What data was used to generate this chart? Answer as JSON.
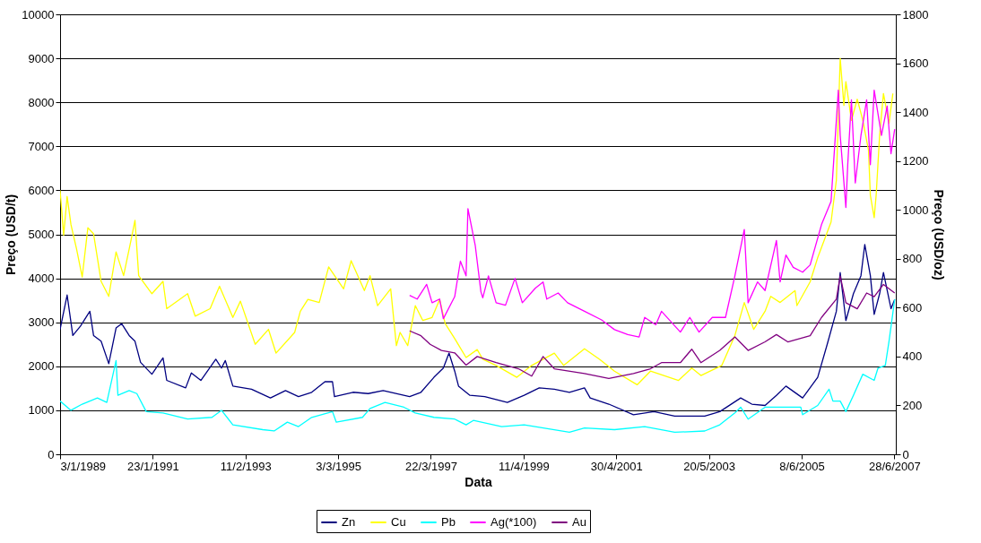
{
  "chart_data": {
    "type": "line",
    "xlabel": "Data",
    "ylabel": "Preço (USD/t)",
    "y2label": "Preço (USD/oz)",
    "xlim": [
      "1989-01-03",
      "2007-07-10"
    ],
    "xticks": [
      {
        "value": "1989-01-03",
        "label": "3/1/1989"
      },
      {
        "value": "1991-01-23",
        "label": "23/1/1991"
      },
      {
        "value": "1993-02-11",
        "label": "11/2/1993"
      },
      {
        "value": "1995-03-03",
        "label": "3/3/1995"
      },
      {
        "value": "1997-03-22",
        "label": "22/3/1997"
      },
      {
        "value": "1999-04-11",
        "label": "11/4/1999"
      },
      {
        "value": "2001-04-30",
        "label": "30/4/2001"
      },
      {
        "value": "2003-05-20",
        "label": "20/5/2003"
      },
      {
        "value": "2005-06-08",
        "label": "8/6/2005"
      },
      {
        "value": "2007-06-28",
        "label": "28/6/2007"
      }
    ],
    "ylim": [
      0,
      10000
    ],
    "yticks": [
      0,
      1000,
      2000,
      3000,
      4000,
      5000,
      6000,
      7000,
      8000,
      9000,
      10000
    ],
    "y2lim": [
      0,
      1800
    ],
    "y2ticks": [
      0,
      200,
      400,
      600,
      800,
      1000,
      1200,
      1400,
      1600,
      1800
    ],
    "grid": "y",
    "legend": "bottom",
    "series": [
      {
        "name": "Zn",
        "color": "#000080",
        "x": [
          "1989-01-03",
          "1989-03-01",
          "1989-04-16",
          "1989-06-16",
          "1989-09-01",
          "1989-10-01",
          "1989-12-01",
          "1990-02-01",
          "1990-04-01",
          "1990-05-16",
          "1990-07-16",
          "1990-09-01",
          "1990-10-16",
          "1991-01-16",
          "1991-04-16",
          "1991-05-16",
          "1991-10-16",
          "1991-12-01",
          "1992-02-16",
          "1992-06-16",
          "1992-08-01",
          "1992-09-01",
          "1992-11-01",
          "1993-04-01",
          "1993-09-01",
          "1994-01-01",
          "1994-04-16",
          "1994-08-01",
          "1994-11-16",
          "1995-01-16",
          "1995-02-01",
          "1995-07-01",
          "1995-11-01",
          "1996-03-01",
          "1996-10-01",
          "1997-01-01",
          "1997-04-16",
          "1997-07-01",
          "1997-08-16",
          "1997-10-01",
          "1997-11-01",
          "1998-02-01",
          "1998-06-01",
          "1998-12-01",
          "1999-04-16",
          "1999-08-16",
          "1999-12-16",
          "2000-04-16",
          "2000-08-16",
          "2000-10-01",
          "2001-03-01",
          "2001-09-16",
          "2002-03-01",
          "2002-08-16",
          "2003-04-16",
          "2003-08-16",
          "2004-02-01",
          "2004-05-01",
          "2004-08-16",
          "2004-11-16",
          "2005-02-01",
          "2005-06-16",
          "2005-10-16",
          "2006-01-01",
          "2006-03-16",
          "2006-04-16",
          "2006-06-01",
          "2006-08-01",
          "2006-10-01",
          "2006-11-01",
          "2006-12-16",
          "2007-01-16",
          "2007-03-01",
          "2007-04-01",
          "2007-06-01",
          "2007-07-01"
        ],
        "values": [
          2840,
          3620,
          2700,
          2910,
          3250,
          2700,
          2570,
          2060,
          2870,
          2970,
          2700,
          2570,
          2090,
          1820,
          2190,
          1680,
          1510,
          1850,
          1680,
          2160,
          1960,
          2130,
          1550,
          1480,
          1280,
          1450,
          1310,
          1410,
          1650,
          1650,
          1310,
          1410,
          1380,
          1450,
          1310,
          1410,
          1750,
          1960,
          2300,
          1890,
          1550,
          1340,
          1310,
          1180,
          1340,
          1510,
          1480,
          1410,
          1510,
          1280,
          1140,
          900,
          970,
          870,
          870,
          970,
          1280,
          1140,
          1110,
          1340,
          1550,
          1280,
          1750,
          2500,
          3250,
          4130,
          3040,
          3650,
          4060,
          4770,
          4060,
          3180,
          3650,
          4130,
          3310,
          3520
        ]
      },
      {
        "name": "Cu",
        "color": "#ffff00",
        "x": [
          "1989-01-03",
          "1989-02-01",
          "1989-03-01",
          "1989-04-01",
          "1989-05-16",
          "1989-07-01",
          "1989-08-16",
          "1989-10-01",
          "1989-12-01",
          "1990-02-01",
          "1990-04-01",
          "1990-06-01",
          "1990-08-01",
          "1990-09-01",
          "1990-10-01",
          "1991-01-16",
          "1991-04-16",
          "1991-05-16",
          "1991-11-01",
          "1992-01-01",
          "1992-05-01",
          "1992-07-16",
          "1992-11-01",
          "1993-01-01",
          "1993-05-01",
          "1993-08-16",
          "1993-10-16",
          "1994-03-16",
          "1994-05-01",
          "1994-07-01",
          "1994-10-01",
          "1994-12-16",
          "1995-04-16",
          "1995-06-16",
          "1995-10-01",
          "1995-11-16",
          "1996-01-16",
          "1996-05-01",
          "1996-06-16",
          "1996-07-16",
          "1996-09-16",
          "1996-11-16",
          "1997-01-16",
          "1997-04-01",
          "1997-06-01",
          "1997-07-16",
          "1997-10-01",
          "1998-01-01",
          "1998-04-01",
          "1998-05-16",
          "1998-09-01",
          "1999-02-16",
          "1999-06-16",
          "1999-12-16",
          "2000-03-01",
          "2000-08-16",
          "2000-12-16",
          "2001-04-16",
          "2001-10-16",
          "2002-02-01",
          "2002-09-16",
          "2003-01-01",
          "2003-03-16",
          "2003-09-01",
          "2003-12-16",
          "2004-03-01",
          "2004-05-16",
          "2004-08-16",
          "2004-10-01",
          "2004-12-16",
          "2005-04-16",
          "2005-05-01",
          "2005-08-16",
          "2005-10-16",
          "2006-02-01",
          "2006-03-16",
          "2006-04-16",
          "2006-05-16",
          "2006-06-01",
          "2006-07-16",
          "2006-09-01",
          "2006-10-16",
          "2006-12-01",
          "2006-12-16",
          "2007-01-16",
          "2007-02-01",
          "2007-03-01",
          "2007-04-01",
          "2007-05-16",
          "2007-06-16"
        ],
        "values": [
          6000,
          4980,
          5860,
          5220,
          4670,
          4030,
          5150,
          5010,
          3930,
          3590,
          4600,
          4060,
          4880,
          5320,
          4060,
          3650,
          3930,
          3310,
          3650,
          3140,
          3310,
          3820,
          3110,
          3480,
          2500,
          2840,
          2300,
          2770,
          3250,
          3520,
          3450,
          4260,
          3760,
          4400,
          3720,
          4060,
          3380,
          3760,
          2470,
          2770,
          2470,
          3380,
          3040,
          3110,
          3520,
          2970,
          2630,
          2200,
          2380,
          2160,
          2020,
          1750,
          2020,
          2300,
          2020,
          2400,
          2160,
          1890,
          1580,
          1890,
          1680,
          1960,
          1790,
          2020,
          2700,
          3450,
          2840,
          3250,
          3590,
          3450,
          3720,
          3380,
          3920,
          4470,
          5280,
          6230,
          9000,
          7930,
          8470,
          7590,
          8070,
          7590,
          6910,
          5890,
          5380,
          5890,
          7250,
          8200,
          7520,
          8200
        ]
      },
      {
        "name": "Pb",
        "color": "#00ffff",
        "x": [
          "1989-01-03",
          "1989-04-01",
          "1989-07-01",
          "1989-11-01",
          "1990-01-16",
          "1990-04-01",
          "1990-04-16",
          "1990-07-16",
          "1990-09-16",
          "1990-12-01",
          "1991-04-16",
          "1991-11-01",
          "1992-05-16",
          "1992-08-01",
          "1992-11-01",
          "1993-07-01",
          "1993-10-01",
          "1994-01-16",
          "1994-04-16",
          "1994-08-01",
          "1995-01-16",
          "1995-02-16",
          "1995-09-16",
          "1995-11-16",
          "1996-03-16",
          "1996-08-16",
          "1996-11-16",
          "1997-04-16",
          "1997-10-01",
          "1998-01-01",
          "1998-03-01",
          "1998-10-16",
          "1999-04-16",
          "2000-04-16",
          "2000-08-16",
          "2001-04-16",
          "2001-12-16",
          "2002-08-16",
          "2003-04-16",
          "2003-08-16",
          "2003-12-16",
          "2004-02-01",
          "2004-04-01",
          "2004-08-16",
          "2005-06-01",
          "2005-06-16",
          "2005-10-16",
          "2006-01-16",
          "2006-02-16",
          "2006-04-16",
          "2006-06-01",
          "2006-08-01",
          "2006-10-16",
          "2007-01-16",
          "2007-02-16",
          "2007-04-16",
          "2007-05-16",
          "2007-07-01"
        ],
        "values": [
          1210,
          1000,
          1140,
          1280,
          1180,
          2130,
          1340,
          1450,
          1380,
          970,
          940,
          800,
          840,
          1000,
          670,
          560,
          530,
          730,
          630,
          840,
          970,
          730,
          840,
          1040,
          1180,
          1070,
          940,
          840,
          800,
          670,
          770,
          630,
          670,
          500,
          600,
          560,
          630,
          500,
          530,
          670,
          940,
          1070,
          800,
          1070,
          1070,
          900,
          1110,
          1480,
          1210,
          1210,
          970,
          1340,
          1820,
          1680,
          1960,
          2020,
          2570,
          3520
        ]
      },
      {
        "name": "Ag(*100)",
        "color": "#ff00ff",
        "axis": "y2",
        "x": [
          "1996-10-01",
          "1996-12-01",
          "1997-02-16",
          "1997-04-01",
          "1997-06-01",
          "1997-07-01",
          "1997-10-01",
          "1997-11-16",
          "1998-01-01",
          "1998-01-16",
          "1998-03-16",
          "1998-05-01",
          "1998-05-16",
          "1998-07-01",
          "1998-09-01",
          "1998-11-16",
          "1999-02-01",
          "1999-04-01",
          "1999-07-16",
          "1999-09-16",
          "1999-10-16",
          "2000-01-16",
          "2000-04-01",
          "2000-08-16",
          "2001-01-01",
          "2001-04-16",
          "2001-08-01",
          "2001-11-01",
          "2001-12-16",
          "2002-03-16",
          "2002-05-01",
          "2002-10-01",
          "2002-12-16",
          "2003-03-01",
          "2003-06-16",
          "2003-10-01",
          "2003-12-16",
          "2004-03-01",
          "2004-04-01",
          "2004-06-16",
          "2004-08-16",
          "2004-11-16",
          "2004-12-16",
          "2005-02-01",
          "2005-04-01",
          "2005-06-16",
          "2005-08-16",
          "2005-11-16",
          "2006-02-01",
          "2006-04-01",
          "2006-04-16",
          "2006-06-01",
          "2006-06-16",
          "2006-07-16",
          "2006-08-16",
          "2006-10-01",
          "2006-11-16",
          "2006-12-16",
          "2007-01-16",
          "2007-03-16",
          "2007-05-01",
          "2007-06-01",
          "2007-07-01"
        ],
        "values": [
          650,
          635,
          695,
          620,
          635,
          555,
          645,
          790,
          730,
          1005,
          855,
          665,
          640,
          730,
          620,
          610,
          720,
          620,
          680,
          705,
          635,
          660,
          620,
          585,
          550,
          510,
          490,
          480,
          560,
          530,
          585,
          500,
          560,
          500,
          560,
          560,
          730,
          920,
          620,
          705,
          670,
          875,
          705,
          815,
          765,
          745,
          775,
          940,
          1035,
          1490,
          1305,
          1010,
          1185,
          1450,
          1110,
          1305,
          1450,
          1185,
          1490,
          1305,
          1425,
          1230,
          1330
        ]
      },
      {
        "name": "Au",
        "color": "#800080",
        "axis": "y2",
        "x": [
          "1996-10-01",
          "1997-01-01",
          "1997-03-16",
          "1997-06-16",
          "1997-10-01",
          "1998-01-01",
          "1998-04-01",
          "1998-09-01",
          "1999-03-01",
          "1999-06-16",
          "1999-09-16",
          "1999-12-16",
          "2000-08-16",
          "2001-03-01",
          "2001-09-16",
          "2002-02-01",
          "2002-05-01",
          "2002-10-01",
          "2003-01-01",
          "2003-03-16",
          "2003-08-16",
          "2003-12-16",
          "2004-04-01",
          "2004-08-16",
          "2004-11-16",
          "2005-02-16",
          "2005-08-16",
          "2005-11-16",
          "2006-03-16",
          "2006-04-16",
          "2006-06-01",
          "2006-09-01",
          "2006-11-16",
          "2007-01-16",
          "2007-04-01",
          "2007-07-01"
        ],
        "values": [
          505,
          485,
          450,
          425,
          415,
          365,
          400,
          375,
          350,
          320,
          400,
          350,
          330,
          310,
          330,
          350,
          375,
          375,
          430,
          375,
          425,
          480,
          425,
          460,
          490,
          460,
          485,
          560,
          635,
          730,
          620,
          595,
          660,
          645,
          695,
          660
        ]
      }
    ]
  }
}
